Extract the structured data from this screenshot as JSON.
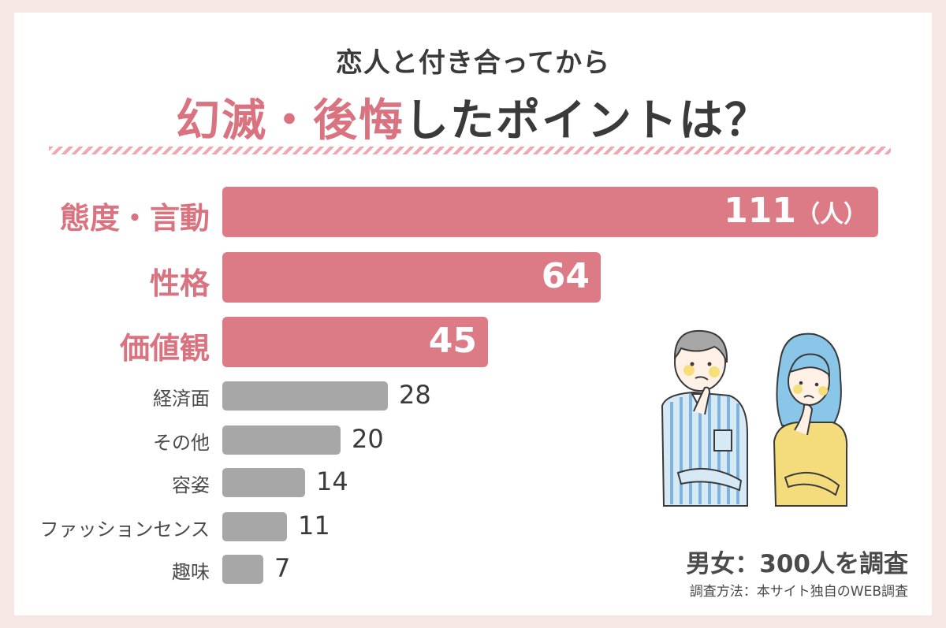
{
  "title": {
    "line1": "恋人と付き合ってから",
    "line2_accent": "幻滅・後悔",
    "line2_rest": "したポイントは？"
  },
  "chart_data": {
    "type": "bar",
    "orientation": "horizontal",
    "categories": [
      "態度・言動",
      "性格",
      "価値観",
      "経済面",
      "その他",
      "容姿",
      "ファッションセンス",
      "趣味"
    ],
    "values": [
      111,
      64,
      45,
      28,
      20,
      14,
      11,
      7
    ],
    "unit": "（人）",
    "highlight_top": 3,
    "colors": {
      "highlight": "#dc7a86",
      "normal": "#a7a7a7",
      "label_highlight": "#d9737f"
    }
  },
  "footer": {
    "survey": "男女：300人を調査",
    "method": "調査方法：本サイト独自のWEB調査"
  },
  "illustration": {
    "name": "thinking-couple-illustration"
  }
}
